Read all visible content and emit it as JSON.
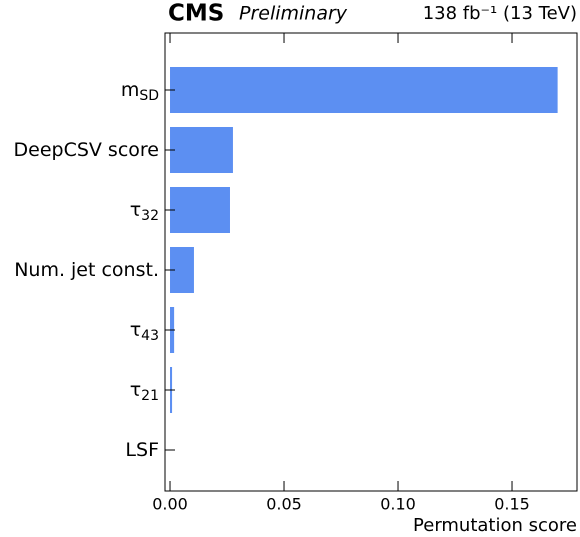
{
  "chart_data": {
    "type": "barh",
    "experiment": "CMS",
    "status": "Preliminary",
    "lumi": "138 fb⁻¹ (13 TeV)",
    "xlabel": "Permutation score",
    "categories": [
      {
        "text": "m",
        "sub": "SD"
      },
      {
        "text": "DeepCSV score"
      },
      {
        "text": "τ",
        "sub": "32"
      },
      {
        "text": "Num. jet const."
      },
      {
        "text": "τ",
        "sub": "43"
      },
      {
        "text": "τ",
        "sub": "21"
      },
      {
        "text": "LSF"
      }
    ],
    "values": [
      0.17,
      0.0276,
      0.0263,
      0.0105,
      0.0018,
      0.0009,
      0
    ],
    "color": "#5c8ff2",
    "xlim": [
      -0.0022,
      0.1785
    ],
    "xticks": [
      {
        "value": 0,
        "label": "0.00"
      },
      {
        "value": 0.05,
        "label": "0.05"
      },
      {
        "value": 0.1,
        "label": "0.10"
      },
      {
        "value": 0.15,
        "label": "0.15"
      }
    ]
  }
}
